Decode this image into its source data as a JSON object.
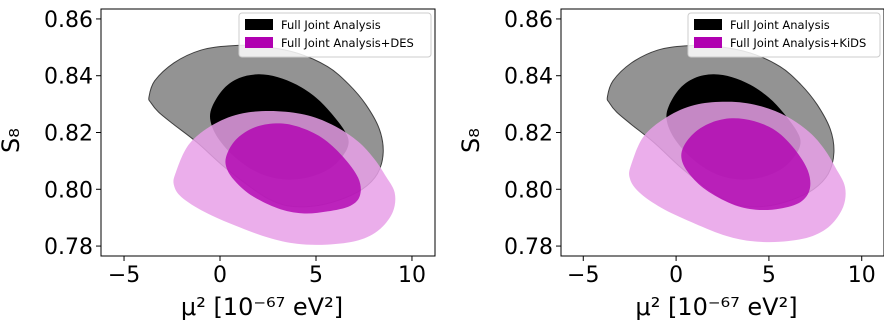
{
  "chart_data": [
    {
      "type": "contour",
      "xlabel": "μ² [10⁻⁶⁷ eV²]",
      "ylabel": "S₈",
      "xlim": [
        -6.2,
        11.2
      ],
      "ylim": [
        0.7765,
        0.8635
      ],
      "xticks": [
        -5,
        0,
        5,
        10
      ],
      "xtick_labels": [
        "−5",
        "0",
        "5",
        "10"
      ],
      "yticks": [
        0.78,
        0.8,
        0.82,
        0.84,
        0.86
      ],
      "ytick_labels": [
        "0.78",
        "0.80",
        "0.82",
        "0.84",
        "0.86"
      ],
      "legend": "upper-right",
      "series": [
        {
          "name": "Full Joint Analysis",
          "color": "#000000",
          "outer_color": "#808080",
          "contour_1sigma": [
            [
              -0.4,
              0.8292
            ],
            [
              0.2,
              0.8355
            ],
            [
              1.0,
              0.8392
            ],
            [
              2.0,
              0.8405
            ],
            [
              3.0,
              0.8395
            ],
            [
              4.0,
              0.8368
            ],
            [
              5.0,
              0.8323
            ],
            [
              5.8,
              0.8268
            ],
            [
              6.5,
              0.8205
            ],
            [
              6.7,
              0.8163
            ],
            [
              6.4,
              0.8118
            ],
            [
              5.7,
              0.8072
            ],
            [
              4.6,
              0.8042
            ],
            [
              3.3,
              0.8035
            ],
            [
              2.0,
              0.8058
            ],
            [
              0.8,
              0.8112
            ],
            [
              -0.1,
              0.818
            ],
            [
              -0.5,
              0.8242
            ]
          ],
          "contour_2sigma": [
            [
              -3.7,
              0.8325
            ],
            [
              -3.4,
              0.8382
            ],
            [
              -2.4,
              0.8445
            ],
            [
              -1.0,
              0.849
            ],
            [
              0.5,
              0.8505
            ],
            [
              2.0,
              0.8505
            ],
            [
              4.0,
              0.848
            ],
            [
              5.6,
              0.8432
            ],
            [
              6.7,
              0.837
            ],
            [
              7.6,
              0.8298
            ],
            [
              8.3,
              0.8212
            ],
            [
              8.5,
              0.813
            ],
            [
              8.2,
              0.8055
            ],
            [
              7.4,
              0.8
            ],
            [
              6.2,
              0.7962
            ],
            [
              4.8,
              0.794
            ],
            [
              3.5,
              0.7942
            ],
            [
              2.5,
              0.7967
            ],
            [
              1.5,
              0.8012
            ],
            [
              0.2,
              0.808
            ],
            [
              -1.2,
              0.8165
            ],
            [
              -2.4,
              0.8228
            ],
            [
              -3.2,
              0.8272
            ],
            [
              -3.6,
              0.8305
            ]
          ]
        },
        {
          "name": "Full Joint Analysis+DES",
          "color": "#b000b0",
          "outer_color": "#e8a0e8",
          "contour_1sigma": [
            [
              0.4,
              0.813
            ],
            [
              0.9,
              0.818
            ],
            [
              1.8,
              0.8218
            ],
            [
              2.9,
              0.8232
            ],
            [
              4.0,
              0.8222
            ],
            [
              5.3,
              0.8182
            ],
            [
              6.4,
              0.8115
            ],
            [
              7.2,
              0.804
            ],
            [
              7.3,
              0.798
            ],
            [
              6.8,
              0.7942
            ],
            [
              5.6,
              0.7922
            ],
            [
              4.3,
              0.7915
            ],
            [
              3.0,
              0.7933
            ],
            [
              1.6,
              0.798
            ],
            [
              0.7,
              0.8035
            ],
            [
              0.3,
              0.8085
            ]
          ],
          "contour_2sigma": [
            [
              -2.3,
              0.806
            ],
            [
              -1.6,
              0.816
            ],
            [
              -0.3,
              0.823
            ],
            [
              1.2,
              0.8268
            ],
            [
              3.0,
              0.8275
            ],
            [
              4.6,
              0.826
            ],
            [
              6.0,
              0.8222
            ],
            [
              7.2,
              0.8168
            ],
            [
              8.0,
              0.811
            ],
            [
              8.6,
              0.805
            ],
            [
              9.1,
              0.7988
            ],
            [
              9.0,
              0.792
            ],
            [
              8.3,
              0.7858
            ],
            [
              7.2,
              0.782
            ],
            [
              5.6,
              0.7805
            ],
            [
              4.0,
              0.7808
            ],
            [
              2.5,
              0.783
            ],
            [
              0.8,
              0.7872
            ],
            [
              -0.8,
              0.792
            ],
            [
              -2.0,
              0.7972
            ],
            [
              -2.4,
              0.8015
            ]
          ]
        }
      ]
    },
    {
      "type": "contour",
      "xlabel": "μ² [10⁻⁶⁷ eV²]",
      "ylabel": "S₈",
      "xlim": [
        -6.2,
        11.2
      ],
      "ylim": [
        0.7765,
        0.8635
      ],
      "xticks": [
        -5,
        0,
        5,
        10
      ],
      "xtick_labels": [
        "−5",
        "0",
        "5",
        "10"
      ],
      "yticks": [
        0.78,
        0.8,
        0.82,
        0.84,
        0.86
      ],
      "ytick_labels": [
        "0.78",
        "0.80",
        "0.82",
        "0.84",
        "0.86"
      ],
      "legend": "upper-right",
      "series": [
        {
          "name": "Full Joint Analysis",
          "color": "#000000",
          "outer_color": "#808080",
          "contour_1sigma": [
            [
              -0.4,
              0.8292
            ],
            [
              0.2,
              0.8355
            ],
            [
              1.0,
              0.8392
            ],
            [
              2.0,
              0.8405
            ],
            [
              3.0,
              0.8395
            ],
            [
              4.0,
              0.8368
            ],
            [
              5.0,
              0.8323
            ],
            [
              5.8,
              0.8268
            ],
            [
              6.5,
              0.8205
            ],
            [
              6.7,
              0.8163
            ],
            [
              6.4,
              0.8118
            ],
            [
              5.7,
              0.8072
            ],
            [
              4.6,
              0.8042
            ],
            [
              3.3,
              0.8035
            ],
            [
              2.0,
              0.8058
            ],
            [
              0.8,
              0.8112
            ],
            [
              -0.1,
              0.818
            ],
            [
              -0.5,
              0.8242
            ]
          ],
          "contour_2sigma": [
            [
              -3.7,
              0.8325
            ],
            [
              -3.4,
              0.8382
            ],
            [
              -2.4,
              0.8445
            ],
            [
              -1.0,
              0.849
            ],
            [
              0.5,
              0.8505
            ],
            [
              2.0,
              0.8505
            ],
            [
              4.0,
              0.848
            ],
            [
              5.6,
              0.8432
            ],
            [
              6.7,
              0.837
            ],
            [
              7.6,
              0.8298
            ],
            [
              8.3,
              0.8212
            ],
            [
              8.5,
              0.813
            ],
            [
              8.2,
              0.8055
            ],
            [
              7.4,
              0.8
            ],
            [
              6.2,
              0.7962
            ],
            [
              4.8,
              0.794
            ],
            [
              3.5,
              0.7942
            ],
            [
              2.5,
              0.7967
            ],
            [
              1.5,
              0.8012
            ],
            [
              0.2,
              0.808
            ],
            [
              -1.2,
              0.8165
            ],
            [
              -2.4,
              0.8228
            ],
            [
              -3.2,
              0.8272
            ],
            [
              -3.6,
              0.8305
            ]
          ]
        },
        {
          "name": "Full Joint Analysis+KiDS",
          "color": "#b000b0",
          "outer_color": "#e8a0e8",
          "contour_1sigma": [
            [
              0.4,
              0.815
            ],
            [
              1.0,
              0.82
            ],
            [
              1.9,
              0.8235
            ],
            [
              3.0,
              0.825
            ],
            [
              4.2,
              0.824
            ],
            [
              5.4,
              0.8205
            ],
            [
              6.4,
              0.814
            ],
            [
              7.1,
              0.8065
            ],
            [
              7.2,
              0.8
            ],
            [
              6.7,
              0.7955
            ],
            [
              5.6,
              0.7932
            ],
            [
              4.3,
              0.7928
            ],
            [
              3.0,
              0.7948
            ],
            [
              1.6,
              0.7998
            ],
            [
              0.7,
              0.8055
            ],
            [
              0.3,
              0.8105
            ]
          ],
          "contour_2sigma": [
            [
              -2.4,
              0.809
            ],
            [
              -1.7,
              0.819
            ],
            [
              -0.3,
              0.8262
            ],
            [
              1.2,
              0.83
            ],
            [
              3.0,
              0.8308
            ],
            [
              4.6,
              0.8292
            ],
            [
              6.0,
              0.8255
            ],
            [
              7.2,
              0.82
            ],
            [
              8.0,
              0.814
            ],
            [
              8.6,
              0.8075
            ],
            [
              9.1,
              0.8008
            ],
            [
              9.0,
              0.7938
            ],
            [
              8.3,
              0.7872
            ],
            [
              7.2,
              0.7832
            ],
            [
              5.6,
              0.7815
            ],
            [
              4.0,
              0.7818
            ],
            [
              2.5,
              0.784
            ],
            [
              0.8,
              0.7885
            ],
            [
              -0.8,
              0.7935
            ],
            [
              -2.0,
              0.799
            ],
            [
              -2.5,
              0.804
            ]
          ]
        }
      ]
    }
  ]
}
